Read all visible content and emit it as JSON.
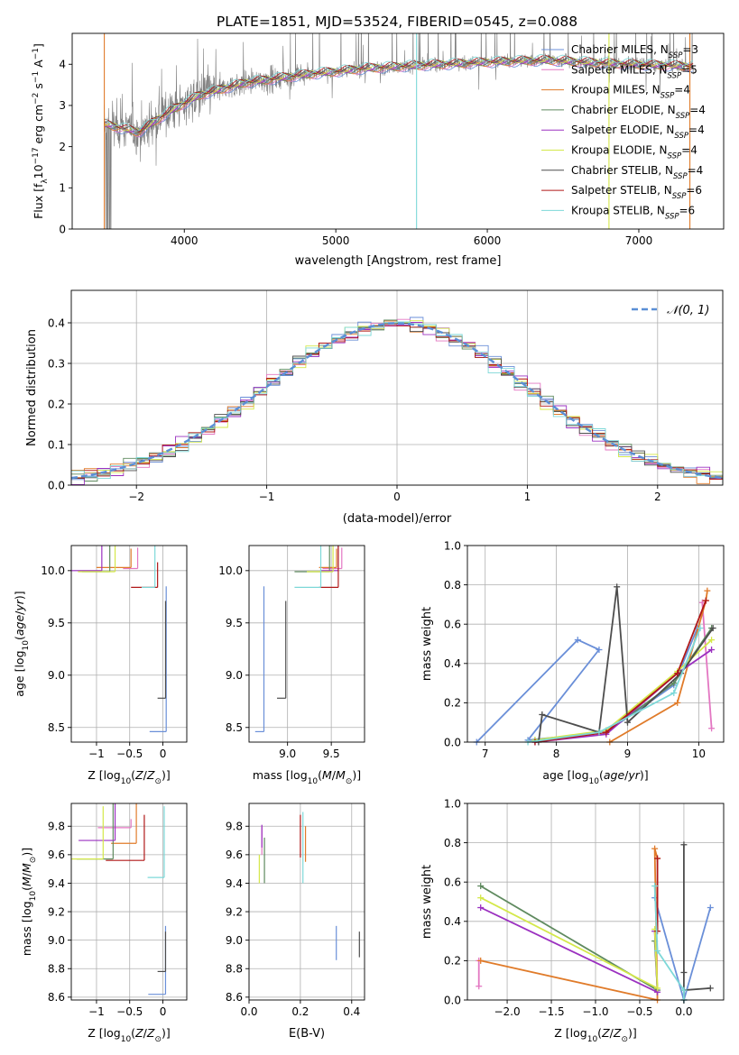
{
  "figure": {
    "title": "PLATE=1851, MJD=53524, FIBERID=0545, z=0.088"
  },
  "legend_entries": [
    {
      "base": "Chabrier MILES, N",
      "sub": "SSP",
      "tail": "=3",
      "color": "#6a8fd8"
    },
    {
      "base": "Salpeter MILES, N",
      "sub": "SSP",
      "tail": "=5",
      "color": "#e377c2"
    },
    {
      "base": "Kroupa MILES, N",
      "sub": "SSP",
      "tail": "=4",
      "color": "#e07b2a"
    },
    {
      "base": "Chabrier ELODIE, N",
      "sub": "SSP",
      "tail": "=4",
      "color": "#5f8a5f"
    },
    {
      "base": "Salpeter ELODIE, N",
      "sub": "SSP",
      "tail": "=4",
      "color": "#9b30c0"
    },
    {
      "base": "Kroupa ELODIE, N",
      "sub": "SSP",
      "tail": "=4",
      "color": "#d4e84a"
    },
    {
      "base": "Chabrier STELIB, N",
      "sub": "SSP",
      "tail": "=4",
      "color": "#4d4d4d"
    },
    {
      "base": "Salpeter STELIB, N",
      "sub": "SSP",
      "tail": "=6",
      "color": "#b01818"
    },
    {
      "base": "Kroupa STELIB, N",
      "sub": "SSP",
      "tail": "=6",
      "color": "#7dd8d8"
    }
  ],
  "colors": {
    "chabrier_miles": "#6a8fd8",
    "salpeter_miles": "#e377c2",
    "kroupa_miles": "#e07b2a",
    "chabrier_elodie": "#5f8a5f",
    "salpeter_elodie": "#9b30c0",
    "kroupa_elodie": "#d4e84a",
    "chabrier_stelib": "#4d4d4d",
    "salpeter_stelib": "#b01818",
    "kroupa_stelib": "#7dd8d8",
    "data_spectrum": "#7f7f7f",
    "grid": "#b0b0b0"
  },
  "chart_data": [
    {
      "type": "line",
      "id": "spectrum",
      "xlabel": "wavelength [Angstrom, rest frame]",
      "ylabel": "Flux [fλ 10^-17 erg cm^-2 s^-1 A^-1]",
      "xlim": [
        3260,
        7560
      ],
      "ylim": [
        0,
        4.75
      ],
      "xticks": [
        4000,
        5000,
        6000,
        7000
      ],
      "yticks": [
        0,
        1,
        2,
        3,
        4
      ],
      "data_range": [
        3470,
        7360
      ],
      "continuum_knots": [
        [
          3470,
          2.55
        ],
        [
          3700,
          2.35
        ],
        [
          3900,
          2.85
        ],
        [
          4100,
          3.25
        ],
        [
          4400,
          3.55
        ],
        [
          4800,
          3.75
        ],
        [
          5200,
          3.9
        ],
        [
          5600,
          3.98
        ],
        [
          6000,
          4.05
        ],
        [
          6400,
          4.1
        ],
        [
          6800,
          4.02
        ],
        [
          7100,
          3.98
        ],
        [
          7360,
          3.95
        ]
      ],
      "grid": false
    },
    {
      "type": "line",
      "id": "residual-histogram",
      "xlabel": "(data-model)/error",
      "ylabel": "Normed distribution",
      "xlim": [
        -2.5,
        2.5
      ],
      "ylim": [
        0,
        0.48
      ],
      "xticks": [
        -2,
        -1,
        0,
        1,
        2
      ],
      "yticks": [
        0.0,
        0.1,
        0.2,
        0.3,
        0.4
      ],
      "bin_width": 0.1,
      "grid": true,
      "legend": {
        "label": "𝒩(0, 1)",
        "position": "upper right"
      }
    },
    {
      "type": "scatter",
      "id": "age-vs-Z",
      "xlabel": "Z [log10(Z/Z⊙)]",
      "ylabel": "age  [log10(age/yr)]",
      "xlim": [
        -1.38,
        0.36
      ],
      "ylim": [
        8.36,
        10.24
      ],
      "xticks": [
        -1,
        -0.5,
        0
      ],
      "yticks": [
        8.5,
        9.0,
        9.5,
        10.0
      ],
      "grid": true,
      "series": [
        {
          "model": "chabrier_miles",
          "x": 0.05,
          "y": 8.46,
          "xerr": 0.25,
          "yerr": 1.39
        },
        {
          "model": "salpeter_miles",
          "x": -0.38,
          "y": 10.02,
          "xerr": 0.22,
          "yerr": 0.2
        },
        {
          "model": "kroupa_miles",
          "x": -0.48,
          "y": 10.03,
          "xerr": 0.52,
          "yerr": 0.18
        },
        {
          "model": "chabrier_elodie",
          "x": -0.8,
          "y": 9.99,
          "xerr": 0.42,
          "yerr": 0.45
        },
        {
          "model": "salpeter_elodie",
          "x": -0.92,
          "y": 10.0,
          "xerr": 0.58,
          "yerr": 0.3
        },
        {
          "model": "kroupa_elodie",
          "x": -0.72,
          "y": 9.99,
          "xerr": 0.56,
          "yerr": 0.55
        },
        {
          "model": "chabrier_stelib",
          "x": 0.04,
          "y": 8.78,
          "xerr": 0.12,
          "yerr": 0.93
        },
        {
          "model": "salpeter_stelib",
          "x": -0.08,
          "y": 9.84,
          "xerr": 0.4,
          "yerr": 0.24
        },
        {
          "model": "kroupa_stelib",
          "x": -0.12,
          "y": 9.84,
          "xerr": 0.2,
          "yerr": 0.8
        }
      ]
    },
    {
      "type": "scatter",
      "id": "age-vs-mass",
      "xlabel": "mass [log10(M/M⊙)]",
      "ylabel": "",
      "xlim": [
        8.56,
        9.88
      ],
      "ylim": [
        8.36,
        10.24
      ],
      "xticks": [
        9.0,
        9.5
      ],
      "yticks": [
        8.5,
        9.0,
        9.5,
        10.0
      ],
      "grid": true,
      "series": [
        {
          "model": "chabrier_miles",
          "x": 8.73,
          "y": 8.46,
          "xerr": 0.1,
          "yerr": 1.39
        },
        {
          "model": "salpeter_miles",
          "x": 9.62,
          "y": 10.02,
          "xerr": 0.22,
          "yerr": 0.2
        },
        {
          "model": "kroupa_miles",
          "x": 9.56,
          "y": 10.03,
          "xerr": 0.2,
          "yerr": 0.18
        },
        {
          "model": "chabrier_elodie",
          "x": 9.48,
          "y": 9.99,
          "xerr": 0.4,
          "yerr": 0.45
        },
        {
          "model": "salpeter_elodie",
          "x": 9.58,
          "y": 10.0,
          "xerr": 0.2,
          "yerr": 0.3
        },
        {
          "model": "kroupa_elodie",
          "x": 9.52,
          "y": 9.99,
          "xerr": 0.3,
          "yerr": 0.55
        },
        {
          "model": "chabrier_stelib",
          "x": 8.98,
          "y": 8.78,
          "xerr": 0.1,
          "yerr": 0.93
        },
        {
          "model": "salpeter_stelib",
          "x": 9.58,
          "y": 9.84,
          "xerr": 0.22,
          "yerr": 0.8
        },
        {
          "model": "kroupa_stelib",
          "x": 9.38,
          "y": 9.84,
          "xerr": 0.3,
          "yerr": 0.8
        }
      ]
    },
    {
      "type": "line",
      "id": "mass-weight-vs-age",
      "xlabel": "age  [log10(age/yr)]",
      "ylabel": "mass weight",
      "xlim": [
        6.75,
        10.35
      ],
      "ylim": [
        0,
        1.0
      ],
      "xticks": [
        7,
        8,
        9,
        10
      ],
      "yticks": [
        0.0,
        0.2,
        0.4,
        0.6,
        0.8,
        1.0
      ],
      "grid": true,
      "series": [
        {
          "model": "chabrier_miles",
          "x": [
            6.88,
            8.3,
            8.6,
            7.6,
            8.7,
            9.65,
            9.98
          ],
          "y": [
            0.0,
            0.52,
            0.47,
            0.01,
            0.05,
            0.29,
            0.58
          ]
        },
        {
          "model": "salpeter_miles",
          "x": [
            10.05,
            10.18
          ],
          "y": [
            0.71,
            0.07
          ]
        },
        {
          "model": "kroupa_miles",
          "x": [
            8.75,
            9.7,
            10.1,
            10.12
          ],
          "y": [
            0.0,
            0.2,
            0.72,
            0.77
          ]
        },
        {
          "model": "chabrier_elodie",
          "x": [
            7.7,
            8.7,
            9.65,
            10.18
          ],
          "y": [
            0.01,
            0.05,
            0.3,
            0.58
          ]
        },
        {
          "model": "salpeter_elodie",
          "x": [
            7.7,
            8.7,
            9.7,
            10.18
          ],
          "y": [
            0.0,
            0.04,
            0.35,
            0.47
          ]
        },
        {
          "model": "kroupa_elodie",
          "x": [
            7.7,
            8.7,
            9.7,
            10.18
          ],
          "y": [
            0.01,
            0.06,
            0.36,
            0.52
          ]
        },
        {
          "model": "chabrier_stelib",
          "x": [
            7.75,
            7.8,
            8.6,
            8.85,
            9.0,
            9.75,
            10.2
          ],
          "y": [
            0.0,
            0.14,
            0.05,
            0.79,
            0.1,
            0.35,
            0.58
          ]
        },
        {
          "model": "salpeter_stelib",
          "x": [
            7.7,
            8.7,
            9.7,
            10.1
          ],
          "y": [
            0.0,
            0.05,
            0.35,
            0.72
          ]
        },
        {
          "model": "kroupa_stelib",
          "x": [
            7.6,
            8.6,
            9.65,
            10.02
          ],
          "y": [
            0.0,
            0.05,
            0.25,
            0.58
          ]
        }
      ]
    },
    {
      "type": "scatter",
      "id": "mass-vs-Z",
      "xlabel": "Z [log10(Z/Z⊙)]",
      "ylabel": "mass [log10(M/M⊙)]",
      "xlim": [
        -1.38,
        0.36
      ],
      "ylim": [
        8.58,
        9.96
      ],
      "xticks": [
        -1,
        -0.5,
        0
      ],
      "yticks": [
        8.6,
        8.8,
        9.0,
        9.2,
        9.4,
        9.6,
        9.8
      ],
      "grid": true,
      "series": [
        {
          "model": "chabrier_miles",
          "x": 0.04,
          "y": 8.62,
          "xerr": 0.26,
          "yerr": 0.48
        },
        {
          "model": "salpeter_miles",
          "x": -0.48,
          "y": 9.79,
          "xerr": 0.5,
          "yerr": 0.06
        },
        {
          "model": "kroupa_miles",
          "x": -0.4,
          "y": 9.68,
          "xerr": 0.38,
          "yerr": 0.38
        },
        {
          "model": "chabrier_elodie",
          "x": -0.75,
          "y": 9.57,
          "xerr": 0.55,
          "yerr": 0.49
        },
        {
          "model": "salpeter_elodie",
          "x": -0.72,
          "y": 9.7,
          "xerr": 0.55,
          "yerr": 0.36
        },
        {
          "model": "kroupa_elodie",
          "x": -0.9,
          "y": 9.57,
          "xerr": 0.55,
          "yerr": 0.37
        },
        {
          "model": "chabrier_stelib",
          "x": 0.04,
          "y": 8.78,
          "xerr": 0.12,
          "yerr": 0.28
        },
        {
          "model": "salpeter_stelib",
          "x": -0.28,
          "y": 9.56,
          "xerr": 0.58,
          "yerr": 0.32
        },
        {
          "model": "kroupa_stelib",
          "x": 0.02,
          "y": 9.44,
          "xerr": 0.25,
          "yerr": 0.5
        }
      ]
    },
    {
      "type": "scatter",
      "id": "mass-vs-EBV",
      "xlabel": "E(B-V)",
      "ylabel": "",
      "xlim": [
        0.0,
        0.45
      ],
      "ylim": [
        8.58,
        9.96
      ],
      "xticks": [
        0.0,
        0.2,
        0.4
      ],
      "yticks": [
        8.6,
        8.8,
        9.0,
        9.2,
        9.4,
        9.6,
        9.8
      ],
      "grid": true,
      "series": [
        {
          "model": "chabrier_miles",
          "x": 0.34,
          "y": 8.86,
          "xerr": 0.0,
          "yerr": 0.24
        },
        {
          "model": "salpeter_miles",
          "x": 0.05,
          "y": 9.6,
          "xerr": 0.0,
          "yerr": 0.2
        },
        {
          "model": "kroupa_miles",
          "x": 0.22,
          "y": 9.55,
          "xerr": 0.0,
          "yerr": 0.25
        },
        {
          "model": "chabrier_elodie",
          "x": 0.06,
          "y": 9.4,
          "xerr": 0.0,
          "yerr": 0.32
        },
        {
          "model": "salpeter_elodie",
          "x": 0.05,
          "y": 9.65,
          "xerr": 0.0,
          "yerr": 0.16
        },
        {
          "model": "kroupa_elodie",
          "x": 0.04,
          "y": 9.4,
          "xerr": 0.0,
          "yerr": 0.2
        },
        {
          "model": "chabrier_stelib",
          "x": 0.43,
          "y": 8.88,
          "xerr": 0.0,
          "yerr": 0.18
        },
        {
          "model": "salpeter_stelib",
          "x": 0.2,
          "y": 9.58,
          "xerr": 0.0,
          "yerr": 0.3
        },
        {
          "model": "kroupa_stelib",
          "x": 0.21,
          "y": 9.4,
          "xerr": 0.0,
          "yerr": 0.5
        }
      ]
    },
    {
      "type": "line",
      "id": "mass-weight-vs-Z",
      "xlabel": "Z [log10(Z/Z⊙)]",
      "ylabel": "mass weight",
      "xlim": [
        -2.45,
        0.45
      ],
      "ylim": [
        0,
        1.0
      ],
      "xticks": [
        -2.0,
        -1.5,
        -1.0,
        -0.5,
        0.0
      ],
      "yticks": [
        0.0,
        0.2,
        0.4,
        0.6,
        0.8,
        1.0
      ],
      "grid": true,
      "series": [
        {
          "model": "chabrier_miles",
          "x": [
            -0.33,
            0.0,
            0.3
          ],
          "y": [
            0.52,
            0.0,
            0.47
          ]
        },
        {
          "model": "salpeter_miles",
          "x": [
            -2.32,
            -2.32
          ],
          "y": [
            0.07,
            0.2
          ]
        },
        {
          "model": "kroupa_miles",
          "x": [
            -2.3,
            -0.3,
            -0.33,
            -0.3
          ],
          "y": [
            0.2,
            0.0,
            0.77,
            0.72
          ]
        },
        {
          "model": "chabrier_elodie",
          "x": [
            -2.3,
            -0.3,
            -0.33
          ],
          "y": [
            0.58,
            0.05,
            0.3
          ]
        },
        {
          "model": "salpeter_elodie",
          "x": [
            -2.3,
            -0.3,
            -0.33
          ],
          "y": [
            0.47,
            0.04,
            0.35
          ]
        },
        {
          "model": "kroupa_elodie",
          "x": [
            -2.3,
            -0.3,
            -0.33
          ],
          "y": [
            0.52,
            0.06,
            0.36
          ]
        },
        {
          "model": "chabrier_stelib",
          "x": [
            0.0,
            0.0,
            0.0,
            0.0,
            0.3
          ],
          "y": [
            0.0,
            0.79,
            0.14,
            0.05,
            0.06
          ]
        },
        {
          "model": "salpeter_stelib",
          "x": [
            -0.3,
            -0.3
          ],
          "y": [
            0.72,
            0.35
          ]
        },
        {
          "model": "kroupa_stelib",
          "x": [
            -0.33,
            -0.3,
            0.0,
            0.0
          ],
          "y": [
            0.58,
            0.25,
            0.05,
            0.0
          ]
        }
      ]
    }
  ]
}
